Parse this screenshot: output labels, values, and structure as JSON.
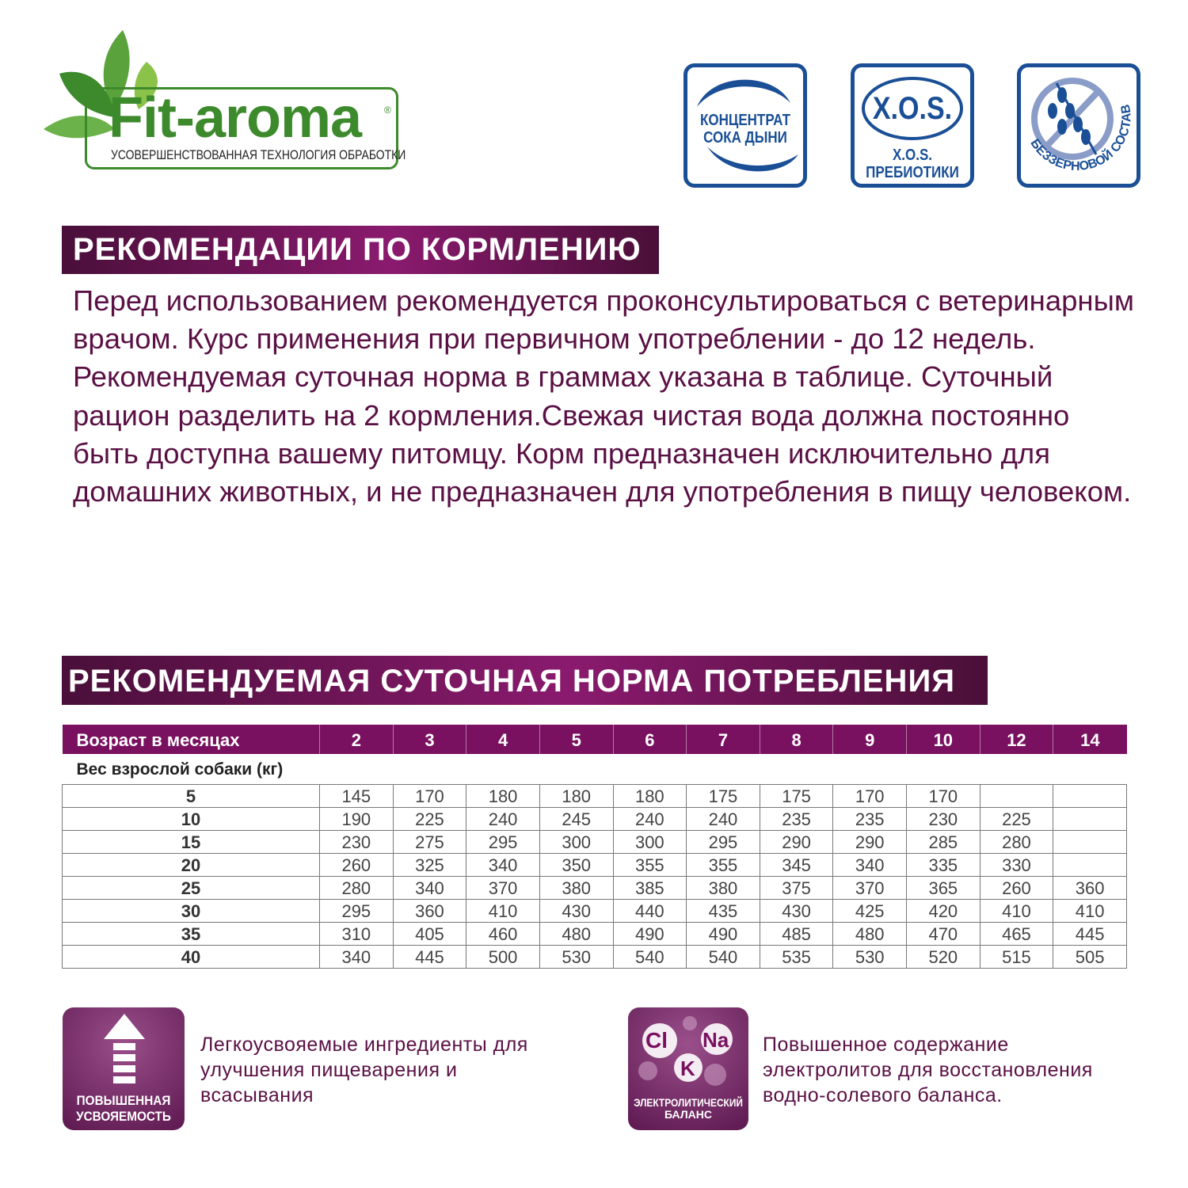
{
  "logo": {
    "name": "Fit-aroma",
    "registered": "®",
    "tagline": "УСОВЕРШЕНСТВОВАННАЯ ТЕХНОЛОГИЯ ОБРАБОТКИ",
    "color": "#3d8a2c"
  },
  "badges": [
    {
      "line1": "КОНЦЕНТРАТ",
      "line2": "СОКА ДЫНИ"
    },
    {
      "big": "X.O.S.",
      "line1": "X.O.S.",
      "line2": "ПРЕБИОТИКИ"
    },
    {
      "label": "БЕЗЗЕРНОВОЙ СОСТАВ",
      "icon": "no-grain-icon"
    }
  ],
  "feeding": {
    "title": "РЕКОМЕНДАЦИИ ПО КОРМЛЕНИЮ",
    "text": "Перед использованием рекомендуется проконсультироваться с ветеринарным врачом. Курс применения при первичном употреблении - до 12 недель. Рекомендуемая суточная норма в граммах указана в таблице. Суточный рацион разделить на 2 кормления.Свежая чистая вода должна постоянно быть доступна вашему питомцу. Корм предназначен исключительно для домашних животных, и не предназначен для употребления в пищу человеком."
  },
  "norm": {
    "title": "РЕКОМЕНДУЕМАЯ СУТОЧНАЯ НОРМА ПОТРЕБЛЕНИЯ",
    "age_label": "Возраст в месяцах",
    "weight_label": "Вес взрослой собаки (кг)",
    "ages": [
      "2",
      "3",
      "4",
      "5",
      "6",
      "7",
      "8",
      "9",
      "10",
      "12",
      "14"
    ],
    "rows": [
      {
        "weight": "5",
        "values": [
          "145",
          "170",
          "180",
          "180",
          "180",
          "175",
          "175",
          "170",
          "170",
          "",
          ""
        ]
      },
      {
        "weight": "10",
        "values": [
          "190",
          "225",
          "240",
          "245",
          "240",
          "240",
          "235",
          "235",
          "230",
          "225",
          ""
        ]
      },
      {
        "weight": "15",
        "values": [
          "230",
          "275",
          "295",
          "300",
          "300",
          "295",
          "290",
          "290",
          "285",
          "280",
          ""
        ]
      },
      {
        "weight": "20",
        "values": [
          "260",
          "325",
          "340",
          "350",
          "355",
          "355",
          "345",
          "340",
          "335",
          "330",
          ""
        ]
      },
      {
        "weight": "25",
        "values": [
          "280",
          "340",
          "370",
          "380",
          "385",
          "380",
          "375",
          "370",
          "365",
          "260",
          "360"
        ]
      },
      {
        "weight": "30",
        "values": [
          "295",
          "360",
          "410",
          "430",
          "440",
          "435",
          "430",
          "425",
          "420",
          "410",
          "410"
        ]
      },
      {
        "weight": "35",
        "values": [
          "310",
          "405",
          "460",
          "480",
          "490",
          "490",
          "485",
          "480",
          "470",
          "465",
          "445"
        ]
      },
      {
        "weight": "40",
        "values": [
          "340",
          "445",
          "500",
          "530",
          "540",
          "540",
          "535",
          "530",
          "520",
          "515",
          "505"
        ]
      }
    ]
  },
  "features": [
    {
      "icon_label1": "ПОВЫШЕННАЯ",
      "icon_label2": "УСВОЯЕМОСТЬ",
      "text": "Легкоусвояемые ингредиенты для улучшения пищеварения и всасывания"
    },
    {
      "icon_label1": "ЭЛЕКТРОЛИТИЧЕСКИЙ",
      "icon_label2": "БАЛАНС",
      "el1": "Cl",
      "el2": "Na",
      "el3": "K",
      "text": "Повышенное содержание электролитов для восстановления водно-солевого баланса."
    }
  ]
}
